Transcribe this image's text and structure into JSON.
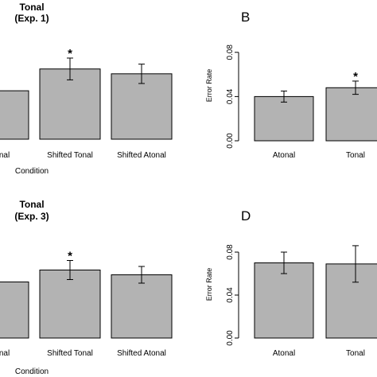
{
  "chart_data": [
    {
      "type": "bar",
      "title": "Tonal",
      "subtitle": "(Exp. 1)",
      "panel_label": "",
      "xlabel": "Condition",
      "ylabel": "",
      "ylim": [
        0,
        0.09
      ],
      "yticks": [],
      "categories": [
        "Atonal",
        "Shifted Tonal",
        "Shifted Atonal"
      ],
      "values": [
        0.04,
        0.058,
        0.054
      ],
      "errors": [
        0.0,
        0.009,
        0.008
      ],
      "significant": [
        false,
        true,
        false
      ],
      "star_label": "*"
    },
    {
      "type": "bar",
      "title": "",
      "subtitle": "",
      "panel_label": "B",
      "xlabel": "",
      "ylabel": "Error Rate",
      "ylim": [
        0,
        0.1
      ],
      "yticks": [
        "0.00",
        "0.04",
        "0.08"
      ],
      "categories": [
        "Atonal",
        "Tonal"
      ],
      "values": [
        0.04,
        0.048
      ],
      "errors": [
        0.005,
        0.006
      ],
      "significant": [
        false,
        true
      ],
      "star_label": "*"
    },
    {
      "type": "bar",
      "title": "Tonal",
      "subtitle": "(Exp. 3)",
      "panel_label": "",
      "xlabel": "Condition",
      "ylabel": "",
      "ylim": [
        0,
        0.09
      ],
      "yticks": [],
      "categories": [
        "Atonal",
        "Shifted Tonal",
        "Shifted Atonal"
      ],
      "values": [
        0.047,
        0.057,
        0.053
      ],
      "errors": [
        0.0,
        0.008,
        0.007
      ],
      "significant": [
        false,
        true,
        false
      ],
      "star_label": "*"
    },
    {
      "type": "bar",
      "title": "",
      "subtitle": "",
      "panel_label": "D",
      "xlabel": "",
      "ylabel": "Error Rate",
      "ylim": [
        0,
        0.1
      ],
      "yticks": [
        "0.00",
        "0.04",
        "0.08"
      ],
      "categories": [
        "Atonal",
        "Tonal"
      ],
      "values": [
        0.07,
        0.069
      ],
      "errors": [
        0.01,
        0.017
      ],
      "significant": [
        false,
        false
      ],
      "star_label": "*"
    }
  ],
  "colors": {
    "bar_fill": "#b3b3b3",
    "bar_stroke": "#000000",
    "axis": "#000000"
  }
}
